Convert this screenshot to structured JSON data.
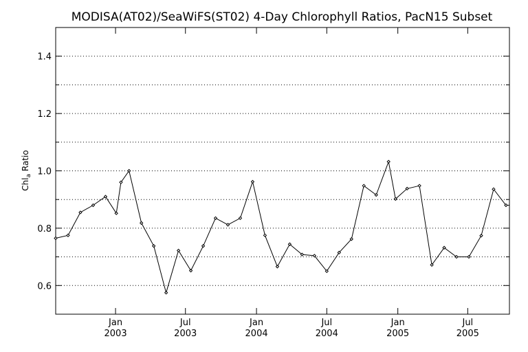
{
  "chart_data": {
    "type": "line",
    "title": "MODISA(AT02)/SeaWiFS(ST02) 4-Day Chlorophyll Ratios, PacN15 Subset",
    "ylabel_main": "Chl",
    "ylabel_sub": "a",
    "ylabel_rest": " Ratio",
    "xlabel": "",
    "ylim": [
      0.5,
      1.5
    ],
    "yticks": [
      0.6,
      0.8,
      1.0,
      1.2,
      1.4
    ],
    "ytick_labels": [
      "0.6",
      "0.8",
      "1.0",
      "1.2",
      "1.4"
    ],
    "ygrid": [
      0.6,
      0.7,
      0.8,
      0.9,
      1.0,
      1.1,
      1.2,
      1.3,
      1.4
    ],
    "grid": true,
    "xlim": [
      "2002-07-30",
      "2005-10-17"
    ],
    "xticks": [
      {
        "date": "2003-01-01",
        "month": "Jan",
        "year": "2003"
      },
      {
        "date": "2003-07-01",
        "month": "Jul",
        "year": "2003"
      },
      {
        "date": "2004-01-01",
        "month": "Jan",
        "year": "2004"
      },
      {
        "date": "2004-07-01",
        "month": "Jul",
        "year": "2004"
      },
      {
        "date": "2005-01-01",
        "month": "Jan",
        "year": "2005"
      },
      {
        "date": "2005-07-01",
        "month": "Jul",
        "year": "2005"
      }
    ],
    "series": [
      {
        "x": [
          "2002-07-30",
          "2002-08-31",
          "2002-10-02",
          "2002-11-04",
          "2002-12-06",
          "2003-01-03",
          "2003-01-15",
          "2003-02-05",
          "2003-03-09",
          "2003-04-10",
          "2003-05-12",
          "2003-06-13",
          "2003-07-15",
          "2003-08-16",
          "2003-09-17",
          "2003-10-19",
          "2003-11-20",
          "2003-12-22",
          "2004-01-23",
          "2004-02-24",
          "2004-03-27",
          "2004-04-28",
          "2004-05-30",
          "2004-07-01",
          "2004-08-02",
          "2004-09-03",
          "2004-10-05",
          "2004-11-06",
          "2004-12-08",
          "2004-12-26",
          "2005-01-25",
          "2005-02-26",
          "2005-03-30",
          "2005-05-01",
          "2005-06-02",
          "2005-07-04",
          "2005-08-05",
          "2005-09-06",
          "2005-10-08",
          "2005-10-17"
        ],
        "values": [
          0.765,
          0.775,
          0.855,
          0.88,
          0.91,
          0.852,
          0.96,
          1.0,
          0.818,
          0.738,
          0.575,
          0.722,
          0.652,
          0.738,
          0.835,
          0.812,
          0.835,
          0.962,
          0.775,
          0.666,
          0.744,
          0.708,
          0.704,
          0.65,
          0.715,
          0.762,
          0.948,
          0.916,
          1.032,
          0.902,
          0.938,
          0.948,
          0.672,
          0.732,
          0.7,
          0.7,
          0.774,
          0.936,
          0.88,
          0.88
        ]
      }
    ]
  }
}
